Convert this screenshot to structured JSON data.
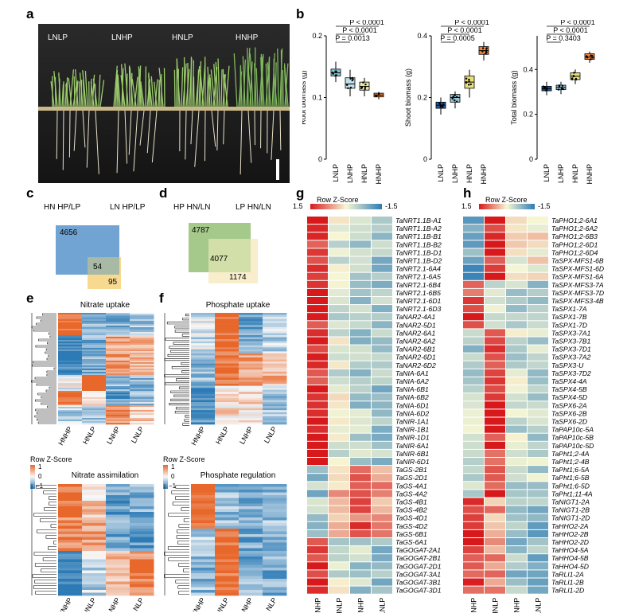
{
  "panels": {
    "a": "a",
    "b": "b",
    "c": "c",
    "d": "d",
    "e": "e",
    "f": "f",
    "g": "g",
    "h": "h"
  },
  "photo": {
    "labels": [
      "LNLP",
      "LNHP",
      "HNLP",
      "HNHP"
    ]
  },
  "boxplots": [
    {
      "ylabel": "Root biomass (g)",
      "yticks": [
        "0",
        "0.1",
        "0.2"
      ],
      "ylim": [
        0,
        0.2
      ],
      "pvals": [
        "P < 0.0001",
        "P < 0.0001",
        "P = 0.0013"
      ],
      "groups": [
        "LNLP",
        "LNHP",
        "HNLP",
        "HNHP"
      ],
      "colors": [
        "#7ec8d6",
        "#bfe0e6",
        "#e8e7a6",
        "#f2823a"
      ],
      "box": [
        [
          0.135,
          0.14,
          0.146
        ],
        [
          0.115,
          0.122,
          0.132
        ],
        [
          0.112,
          0.118,
          0.125
        ],
        [
          0.101,
          0.104,
          0.107
        ]
      ],
      "whisk": [
        [
          0.125,
          0.158
        ],
        [
          0.102,
          0.145
        ],
        [
          0.102,
          0.132
        ],
        [
          0.097,
          0.109
        ]
      ]
    },
    {
      "ylabel": "Shoot biomass (g)",
      "yticks": [
        "0",
        "0.2",
        "0.4"
      ],
      "ylim": [
        0,
        0.4
      ],
      "pvals": [
        "P < 0.0001",
        "P < 0.0001",
        "P = 0.0005"
      ],
      "groups": [
        "LNLP",
        "LNHP",
        "HNLP",
        "HNHP"
      ],
      "colors": [
        "#1f5fa8",
        "#8ec7d9",
        "#e8df7a",
        "#f2823a"
      ],
      "box": [
        [
          0.165,
          0.175,
          0.185
        ],
        [
          0.185,
          0.2,
          0.21
        ],
        [
          0.23,
          0.25,
          0.27
        ],
        [
          0.34,
          0.352,
          0.365
        ]
      ],
      "whisk": [
        [
          0.145,
          0.2
        ],
        [
          0.165,
          0.22
        ],
        [
          0.2,
          0.29
        ],
        [
          0.32,
          0.38
        ]
      ]
    },
    {
      "ylabel": "Total biomass (g)",
      "yticks": [
        "0",
        "0.2",
        "0.4"
      ],
      "ylim": [
        0,
        0.55
      ],
      "pvals": [
        "P < 0.0001",
        "P < 0.0001",
        "P = 0.3403"
      ],
      "groups": [
        "LNLP",
        "LNHP",
        "HNLP",
        "HNHP"
      ],
      "colors": [
        "#1f5fa8",
        "#8ec7d9",
        "#e8df7a",
        "#f2823a"
      ],
      "box": [
        [
          0.305,
          0.315,
          0.325
        ],
        [
          0.31,
          0.32,
          0.33
        ],
        [
          0.355,
          0.37,
          0.385
        ],
        [
          0.445,
          0.455,
          0.47
        ]
      ],
      "whisk": [
        [
          0.285,
          0.345
        ],
        [
          0.29,
          0.345
        ],
        [
          0.335,
          0.4
        ],
        [
          0.43,
          0.48
        ]
      ]
    }
  ],
  "venn_c": {
    "left_title": "HN  HP/LP",
    "right_title": "LN  HP/LP",
    "only_a": "4656",
    "both": "54",
    "only_b": "95"
  },
  "venn_d": {
    "left_title": "HP HN/LN",
    "right_title": "LP  HN/LN",
    "only_a": "4787",
    "both": "4077",
    "only_b": "1174"
  },
  "heat_e": {
    "title_top": "Nitrate uptake",
    "title_bottom": "Nitrate assimilation",
    "legend_title": "Row Z-Score",
    "legend_ticks": [
      "1",
      "0",
      "−1"
    ],
    "cols": [
      "HNHP",
      "HNLP",
      "LNHP",
      "LNLP"
    ]
  },
  "heat_f": {
    "title_top": "Phosphate uptake",
    "title_bottom": "Phosphate regulation",
    "legend_title": "Row Z-Score",
    "legend_ticks": [
      "1",
      "0",
      "−1"
    ],
    "cols": [
      "HNHP",
      "HNLP",
      "LNHP",
      "LNLP"
    ]
  },
  "heat_g": {
    "legend_title": "Row Z-Score",
    "legend_hi": "1.5",
    "legend_lo": "-1.5",
    "cols": [
      "HNHP",
      "HNLP",
      "LNHP",
      "LNLP"
    ],
    "genes": [
      "TaNRT1.1B-A1",
      "TaNRT1.1B-A2",
      "TaNRT1.1B-B1",
      "TaNRT1.1B-B2",
      "TaNRT1.1B-D1",
      "TaNRT1.1B-D2",
      "TaNRT2.1-6A4",
      "TaNRT2.1-6A5",
      "TaNRT2.1-6B4",
      "TaNRT2.1-6B5",
      "TaNRT2.1-6D1",
      "TaNRT2.1-6D3",
      "TaNAR2-4A1",
      "TaNAR2-5D1",
      "TaNAR2-6A1",
      "TaNAR2-6A2",
      "TaNAR2-6B1",
      "TaNAR2-6D1",
      "TaNAR2-6D2",
      "TaNIA-6A1",
      "TaNIA-6A2",
      "TaNIA-6B1",
      "TaNIA-6B2",
      "TaNIA-6D1",
      "TaNIA-6D2",
      "TaNIR-1A1",
      "TaNIR-1B1",
      "TaNIR-1D1",
      "TaNIR-6A1",
      "TaNIR-6B1",
      "TaNIR-6D1",
      "TaGS-2B1",
      "TaGS-2D1",
      "TaGS-4A1",
      "TaGS-4A2",
      "TaGS-4B1",
      "TaGS-4B2",
      "TaGS-4D1",
      "TaGS-4D2",
      "TaGS-6B1",
      "TaGS-6A1",
      "TaGOGAT-2A1",
      "TaGOGAT-2B1",
      "TaGOGAT-2D1",
      "TaGOGAT-3A1",
      "TaGOGAT-3B1",
      "TaGOGAT-3D1"
    ]
  },
  "heat_h": {
    "legend_title": "Row Z-Score",
    "legend_hi": "1.5",
    "legend_lo": "-1.5",
    "cols": [
      "HNHP",
      "HNLP",
      "LNHP",
      "LNLP"
    ],
    "genes": [
      "TaPHO1;2-6A1",
      "TaPHO1;2-6A2",
      "TaPHO1;2-6B3",
      "TaPHO1;2-6D1",
      "TaPHO1;2-6D4",
      "TaSPX-MFS1-6B",
      "TaSPX-MFS1-6D",
      "TaSPX-MFS1-6A",
      "TaSPX-MFS3-7A",
      "TaSPX-MFS3-7D",
      "TaSPX-MFS3-4B",
      "TaSPX1-7A",
      "TaSPX1-7B",
      "TaSPX1-7D",
      "TaSPX3-7A1",
      "TaSPX3-7B1",
      "TaSPX3-7D1",
      "TaSPX3-7A2",
      "TaSPX3-U",
      "TaSPX3-7D2",
      "TaSPX4-4A",
      "TaSPX4-5B",
      "TaSPX4-5D",
      "TaSPX6-2A",
      "TaSPX6-2B",
      "TaSPX6-2D",
      "TaPAP10c-5A",
      "TaPAP10c-5B",
      "TaPAP10c-5D",
      "TaPht1;2-4A",
      "TaPht1;2-4B",
      "TaPht1;6-5A",
      "TaPht1;6-5B",
      "TaPht1;6-5D",
      "TaPht1;11-4A",
      "TaNIGT1-2A",
      "TaNIGT1-2B",
      "TaNIGT1-2D",
      "TaHHO2-2A",
      "TaHHO2-2B",
      "TaHHO2-2D",
      "TaHHO4-5A",
      "TaHHO4-5B",
      "TaHHO4-5D",
      "TaRLI1-2A",
      "TaRLI1-2B",
      "TaRLI1-2D"
    ]
  },
  "colors": {
    "red": "#d7191c",
    "blue": "#2c7bb6",
    "orange": "#e8672a",
    "mid": "#f7f7d4"
  }
}
